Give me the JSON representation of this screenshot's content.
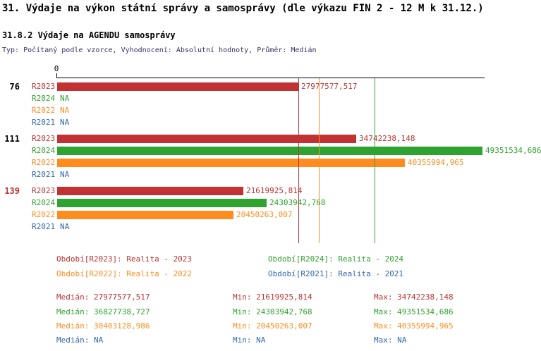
{
  "header": {
    "title": "31. Výdaje na výkon státní správy a samosprávy (dle výkazu FIN 2 - 12 M k 31.12.)",
    "subtitle": "31.8.2 Výdaje na AGENDU samosprávy",
    "meta": "Typ: Počítaný podle vzorce, Vyhodnocení: Absolutní hodnoty, Průměr: Medián"
  },
  "colors": {
    "red": "#c23232",
    "green": "#2fa32f",
    "orange": "#ff8c1f",
    "blue": "#3068b0",
    "black": "#000000",
    "axis": "#000000",
    "meta_text": "#333366"
  },
  "chart_data": {
    "type": "bar",
    "orientation": "horizontal",
    "x_axis": {
      "zero_label": "0",
      "min": 0,
      "max_value": 49351534.686,
      "grid": false
    },
    "groups": [
      {
        "label": "76",
        "label_color_key": "black",
        "bars": [
          {
            "series": "R2023",
            "color_key": "red",
            "value": 27977577.517,
            "display": "27977577,517"
          },
          {
            "series": "R2024",
            "color_key": "green",
            "value": null,
            "display": "NA"
          },
          {
            "series": "R2022",
            "color_key": "orange",
            "value": null,
            "display": "NA"
          },
          {
            "series": "R2021",
            "color_key": "blue",
            "value": null,
            "display": "NA"
          }
        ]
      },
      {
        "label": "111",
        "label_color_key": "black",
        "bars": [
          {
            "series": "R2023",
            "color_key": "red",
            "value": 34742238.148,
            "display": "34742238,148"
          },
          {
            "series": "R2024",
            "color_key": "green",
            "value": 49351534.686,
            "display": "49351534,686"
          },
          {
            "series": "R2022",
            "color_key": "orange",
            "value": 40355994.965,
            "display": "40355994,965"
          },
          {
            "series": "R2021",
            "color_key": "blue",
            "value": null,
            "display": "NA"
          }
        ]
      },
      {
        "label": "139",
        "label_color_key": "red",
        "bars": [
          {
            "series": "R2023",
            "color_key": "red",
            "value": 21619925.814,
            "display": "21619925,814"
          },
          {
            "series": "R2024",
            "color_key": "green",
            "value": 24303942.768,
            "display": "24303942,768"
          },
          {
            "series": "R2022",
            "color_key": "orange",
            "value": 20450263.007,
            "display": "20450263,007"
          },
          {
            "series": "R2021",
            "color_key": "blue",
            "value": null,
            "display": "NA"
          }
        ]
      }
    ],
    "median_lines": [
      {
        "series": "R2023",
        "color_key": "red",
        "value": 27977577.517
      },
      {
        "series": "R2022",
        "color_key": "orange",
        "value": 30403128.986
      },
      {
        "series": "R2024",
        "color_key": "green",
        "value": 36827738.727
      }
    ]
  },
  "legend": [
    {
      "series": "R2023",
      "color_key": "red",
      "label": "Období[R2023]: Realita - 2023"
    },
    {
      "series": "R2024",
      "color_key": "green",
      "label": "Období[R2024]: Realita - 2024"
    },
    {
      "series": "R2022",
      "color_key": "orange",
      "label": "Období[R2022]: Realita - 2022"
    },
    {
      "series": "R2021",
      "color_key": "blue",
      "label": "Období[R2021]: Realita - 2021"
    }
  ],
  "stats": [
    {
      "series": "R2023",
      "color_key": "red",
      "median_label": "Medián: 27977577,517",
      "min_label": "Min: 21619925,814",
      "max_label": "Max: 34742238,148"
    },
    {
      "series": "R2024",
      "color_key": "green",
      "median_label": "Medián: 36827738,727",
      "min_label": "Min: 24303942,768",
      "max_label": "Max: 49351534,686"
    },
    {
      "series": "R2022",
      "color_key": "orange",
      "median_label": "Medián: 30403128,986",
      "min_label": "Min: 20450263,007",
      "max_label": "Max: 40355994,965"
    },
    {
      "series": "R2021",
      "color_key": "blue",
      "median_label": "Medián: NA",
      "min_label": "Min: NA",
      "max_label": "Max: NA"
    }
  ]
}
